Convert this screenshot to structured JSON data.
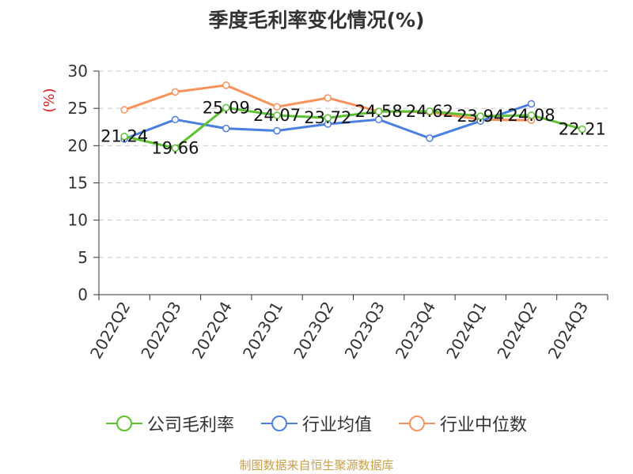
{
  "chart_data": {
    "type": "line",
    "title": "季度毛利率变化情况(%)",
    "ylabel": "(%)",
    "categories": [
      "2022Q2",
      "2022Q3",
      "2022Q4",
      "2023Q1",
      "2023Q2",
      "2023Q3",
      "2023Q4",
      "2024Q1",
      "2024Q2",
      "2024Q3"
    ],
    "ylim": [
      0,
      30
    ],
    "yticks": [
      0,
      5,
      10,
      15,
      20,
      25,
      30
    ],
    "grid": true,
    "legend_position": "bottom",
    "series": [
      {
        "name": "公司毛利率",
        "color": "#5cc230",
        "labeled": true,
        "values": [
          21.24,
          19.66,
          25.09,
          24.07,
          23.72,
          24.58,
          24.62,
          23.94,
          24.08,
          22.21
        ]
      },
      {
        "name": "行业均值",
        "color": "#4a7fe0",
        "labeled": false,
        "values": [
          20.9,
          23.5,
          22.3,
          22.0,
          22.9,
          23.5,
          21.0,
          23.3,
          25.6,
          null
        ]
      },
      {
        "name": "行业中位数",
        "color": "#f7925a",
        "labeled": false,
        "values": [
          24.8,
          27.2,
          28.1,
          25.2,
          26.4,
          24.6,
          24.5,
          23.5,
          23.4,
          null
        ]
      }
    ]
  },
  "legend": {
    "items": [
      {
        "label": "公司毛利率",
        "color": "#5cc230"
      },
      {
        "label": "行业均值",
        "color": "#4a7fe0"
      },
      {
        "label": "行业中位数",
        "color": "#f7925a"
      }
    ]
  },
  "source": "制图数据来自恒生聚源数据库"
}
